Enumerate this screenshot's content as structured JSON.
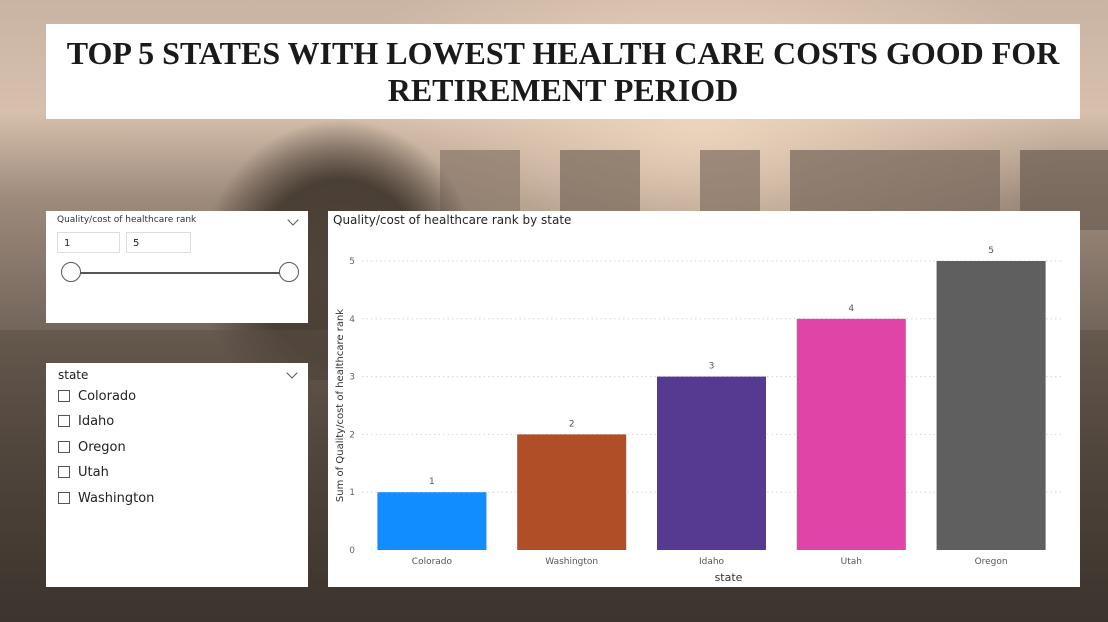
{
  "report": {
    "title": "TOP 5 STATES WITH LOWEST HEALTH CARE COSTS GOOD FOR RETIREMENT PERIOD"
  },
  "range_slicer": {
    "title": "Quality/cost of healthcare rank",
    "min_value": "1",
    "max_value": "5",
    "selected_range": [
      1,
      5
    ]
  },
  "state_slicer": {
    "title": "state",
    "options": [
      "Colorado",
      "Idaho",
      "Oregon",
      "Utah",
      "Washington"
    ]
  },
  "icons": {
    "slicer_toggle": "chevron-down-icon",
    "option_box": "checkbox-icon"
  },
  "chart_data": {
    "type": "bar",
    "title": "Quality/cost of healthcare rank by state",
    "xlabel": "state",
    "ylabel": "Sum of Quality/cost of healthcare rank",
    "categories": [
      "Colorado",
      "Washington",
      "Idaho",
      "Utah",
      "Oregon"
    ],
    "values": [
      1,
      2,
      3,
      4,
      5
    ],
    "colors": [
      "#118DFF",
      "#B04F27",
      "#563A91",
      "#E044A7",
      "#5F5F5F"
    ],
    "ylim": [
      0,
      5
    ],
    "yticks": [
      0,
      1,
      2,
      3,
      4,
      5
    ],
    "grid": true,
    "data_labels": true
  }
}
